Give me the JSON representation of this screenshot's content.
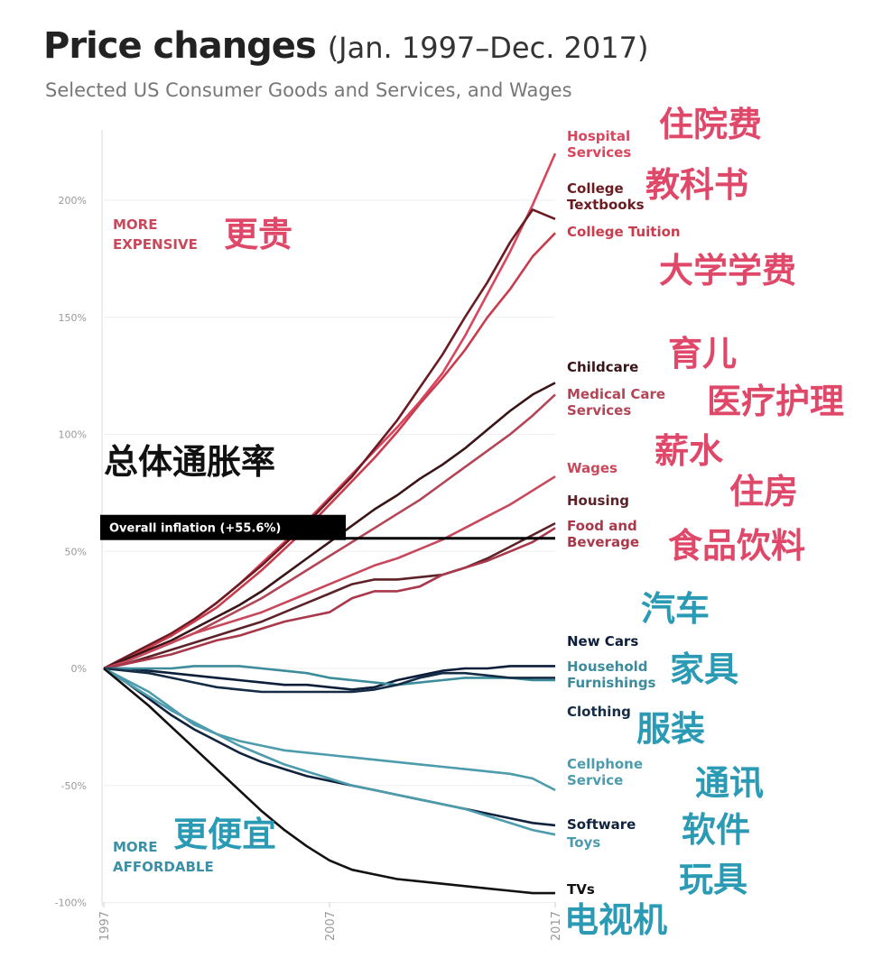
{
  "chart_data": {
    "type": "line",
    "title": "Price changes",
    "title_period": "(Jan. 1997–Dec. 2017)",
    "subtitle": "Selected US Consumer Goods and Services, and Wages",
    "x": [
      1997,
      1998,
      1999,
      2000,
      2001,
      2002,
      2003,
      2004,
      2005,
      2006,
      2007,
      2008,
      2009,
      2010,
      2011,
      2012,
      2013,
      2014,
      2015,
      2016,
      2017
    ],
    "xlim": [
      1997,
      2017
    ],
    "xticks": [
      1997,
      2007,
      2017
    ],
    "ylim": [
      -100,
      230
    ],
    "yticks": [
      {
        "value": -100,
        "label": "-100%"
      },
      {
        "value": -50,
        "label": "-50%"
      },
      {
        "value": 0,
        "label": "0%"
      },
      {
        "value": 50,
        "label": "50%"
      },
      {
        "value": 100,
        "label": "100%"
      },
      {
        "value": 150,
        "label": "150%"
      },
      {
        "value": 200,
        "label": "200%"
      }
    ],
    "grid": true,
    "series": [
      {
        "name": "Hospital Services",
        "color": "#d8465e",
        "values": [
          0,
          5,
          10,
          15,
          21,
          28,
          36,
          45,
          54,
          63,
          73,
          83,
          93,
          103,
          114,
          126,
          142,
          160,
          178,
          198,
          220
        ]
      },
      {
        "name": "College Textbooks",
        "color": "#6a1c22",
        "values": [
          0,
          5,
          10,
          15,
          21,
          28,
          36,
          44,
          53,
          62,
          72,
          82,
          94,
          106,
          120,
          134,
          150,
          165,
          182,
          196,
          192
        ]
      },
      {
        "name": "College Tuition",
        "color": "#c93c4e",
        "values": [
          0,
          4,
          9,
          14,
          20,
          26,
          34,
          42,
          51,
          60,
          70,
          80,
          90,
          101,
          113,
          124,
          136,
          150,
          162,
          176,
          186
        ]
      },
      {
        "name": "Childcare",
        "color": "#3a1518",
        "values": [
          0,
          4,
          8,
          12,
          17,
          22,
          27,
          33,
          40,
          47,
          54,
          61,
          68,
          74,
          81,
          87,
          94,
          102,
          110,
          117,
          122
        ]
      },
      {
        "name": "Medical Care Services",
        "color": "#b24556",
        "values": [
          0,
          3,
          7,
          11,
          15,
          20,
          25,
          30,
          36,
          42,
          48,
          54,
          60,
          66,
          72,
          79,
          86,
          93,
          100,
          108,
          117
        ]
      },
      {
        "name": "Wages",
        "color": "#c8485c",
        "values": [
          0,
          3,
          7,
          11,
          15,
          18,
          21,
          24,
          28,
          32,
          36,
          40,
          44,
          47,
          51,
          55,
          60,
          65,
          70,
          76,
          82
        ]
      },
      {
        "name": "Housing",
        "color": "#5c2228",
        "values": [
          0,
          2,
          5,
          8,
          11,
          14,
          17,
          20,
          24,
          28,
          32,
          36,
          38,
          38,
          39,
          40,
          43,
          47,
          52,
          57,
          62
        ]
      },
      {
        "name": "Food and Beverage",
        "color": "#a8384a",
        "values": [
          0,
          2,
          4,
          6,
          9,
          12,
          14,
          17,
          20,
          22,
          24,
          30,
          33,
          33,
          35,
          40,
          43,
          46,
          50,
          54,
          60
        ]
      },
      {
        "name": "New Cars",
        "color": "#0d1e3a",
        "values": [
          0,
          0,
          -1,
          -2,
          -3,
          -4,
          -5,
          -6,
          -7,
          -7,
          -8,
          -9,
          -8,
          -5,
          -3,
          -1,
          0,
          0,
          1,
          1,
          1
        ]
      },
      {
        "name": "Household Furnishings",
        "color": "#3d8c9c",
        "values": [
          0,
          0,
          0,
          0,
          1,
          1,
          1,
          0,
          -1,
          -2,
          -4,
          -5,
          -6,
          -7,
          -6,
          -5,
          -4,
          -4,
          -4,
          -5,
          -5
        ]
      },
      {
        "name": "Clothing",
        "color": "#142c46",
        "values": [
          0,
          -1,
          -2,
          -4,
          -6,
          -8,
          -9,
          -10,
          -10,
          -10,
          -10,
          -10,
          -9,
          -7,
          -4,
          -2,
          -2,
          -3,
          -4,
          -4,
          -4
        ]
      },
      {
        "name": "Cellphone Service",
        "color": "#4d9cad",
        "values": [
          0,
          -5,
          -10,
          -17,
          -24,
          -28,
          -31,
          -33,
          -35,
          -36,
          -37,
          -38,
          -39,
          -40,
          -41,
          -42,
          -43,
          -44,
          -45,
          -47,
          -52
        ]
      },
      {
        "name": "Software",
        "color": "#10223c",
        "values": [
          0,
          -6,
          -13,
          -20,
          -26,
          -31,
          -36,
          -40,
          -43,
          -46,
          -48,
          -50,
          -52,
          -54,
          -56,
          -58,
          -60,
          -62,
          -64,
          -66,
          -67
        ]
      },
      {
        "name": "Toys",
        "color": "#4d9cad",
        "values": [
          0,
          -6,
          -12,
          -18,
          -23,
          -28,
          -33,
          -37,
          -41,
          -44,
          -47,
          -50,
          -52,
          -54,
          -56,
          -58,
          -60,
          -63,
          -66,
          -69,
          -71
        ]
      },
      {
        "name": "TVs",
        "color": "#111111",
        "values": [
          0,
          -8,
          -16,
          -25,
          -34,
          -43,
          -52,
          -61,
          -69,
          -76,
          -82,
          -86,
          -88,
          -90,
          -91,
          -92,
          -93,
          -94,
          -95,
          -96,
          -96
        ]
      }
    ],
    "overall_inflation": {
      "label": "Overall inflation (+55.6%)",
      "value": 55.6,
      "color": "#000000"
    },
    "direction_labels": [
      {
        "text": "MORE EXPENSIVE",
        "color": "#c8485c"
      },
      {
        "text": "MORE AFFORDABLE",
        "color": "#3d8fa5"
      }
    ],
    "annotations": [
      {
        "text": "住院费",
        "color": "#e0486a"
      },
      {
        "text": "教科书",
        "color": "#e0486a"
      },
      {
        "text": "大学学费",
        "color": "#e0486a"
      },
      {
        "text": "育儿",
        "color": "#e0486a"
      },
      {
        "text": "医疗护理",
        "color": "#e0486a"
      },
      {
        "text": "薪水",
        "color": "#e0486a"
      },
      {
        "text": "住房",
        "color": "#e0486a"
      },
      {
        "text": "食品饮料",
        "color": "#e0486a"
      },
      {
        "text": "汽车",
        "color": "#2a9ab5"
      },
      {
        "text": "家具",
        "color": "#2a9ab5"
      },
      {
        "text": "服装",
        "color": "#2a9ab5"
      },
      {
        "text": "通讯",
        "color": "#2a9ab5"
      },
      {
        "text": "软件",
        "color": "#2a9ab5"
      },
      {
        "text": "玩具",
        "color": "#2a9ab5"
      },
      {
        "text": "电视机",
        "color": "#2a9ab5"
      },
      {
        "text": "更贵",
        "color": "#e0486a"
      },
      {
        "text": "更便宜",
        "color": "#2a9ab5"
      },
      {
        "text": "总体通胀率",
        "color": "#111111"
      }
    ]
  }
}
